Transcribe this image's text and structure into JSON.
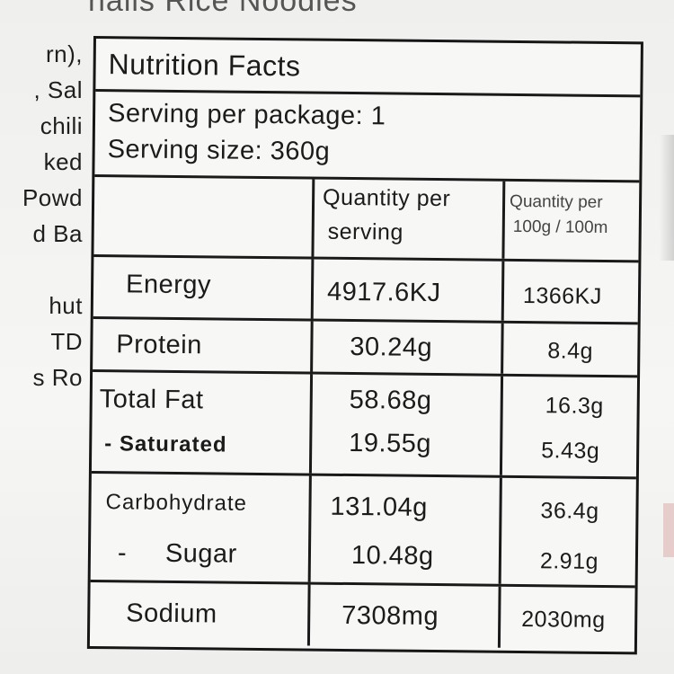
{
  "background_text": {
    "title_fragment": "nails Rice Noodles",
    "left_lines": [
      "rn),",
      ", Sal",
      "chili",
      "ked",
      "Powd",
      "d Ba",
      "",
      "hut",
      "TD",
      "s Ro"
    ]
  },
  "nutrition": {
    "title": "Nutrition Facts",
    "serving_per_package": "Serving per package: 1",
    "serving_size": "Serving size: 360g",
    "headers": {
      "per_serving": [
        "Quantity per",
        "serving"
      ],
      "per_100": [
        "Quantity per",
        "100g / 100m"
      ]
    },
    "rows": [
      {
        "name": "Energy",
        "per_serving": "4917.6KJ",
        "per_100": "1366KJ"
      },
      {
        "name": "Protein",
        "per_serving": "30.24g",
        "per_100": "8.4g"
      },
      {
        "name": "Total Fat",
        "per_serving": "58.68g",
        "per_100": "16.3g"
      },
      {
        "name": "- Saturated",
        "per_serving": "19.55g",
        "per_100": "5.43g"
      },
      {
        "name": "Carbohydrate",
        "per_serving": "131.04g",
        "per_100": "36.4g"
      },
      {
        "name": "-     Sugar",
        "per_serving": "10.48g",
        "per_100": "2.91g"
      },
      {
        "name": "Sodium",
        "per_serving": "7308mg",
        "per_100": "2030mg"
      }
    ]
  }
}
